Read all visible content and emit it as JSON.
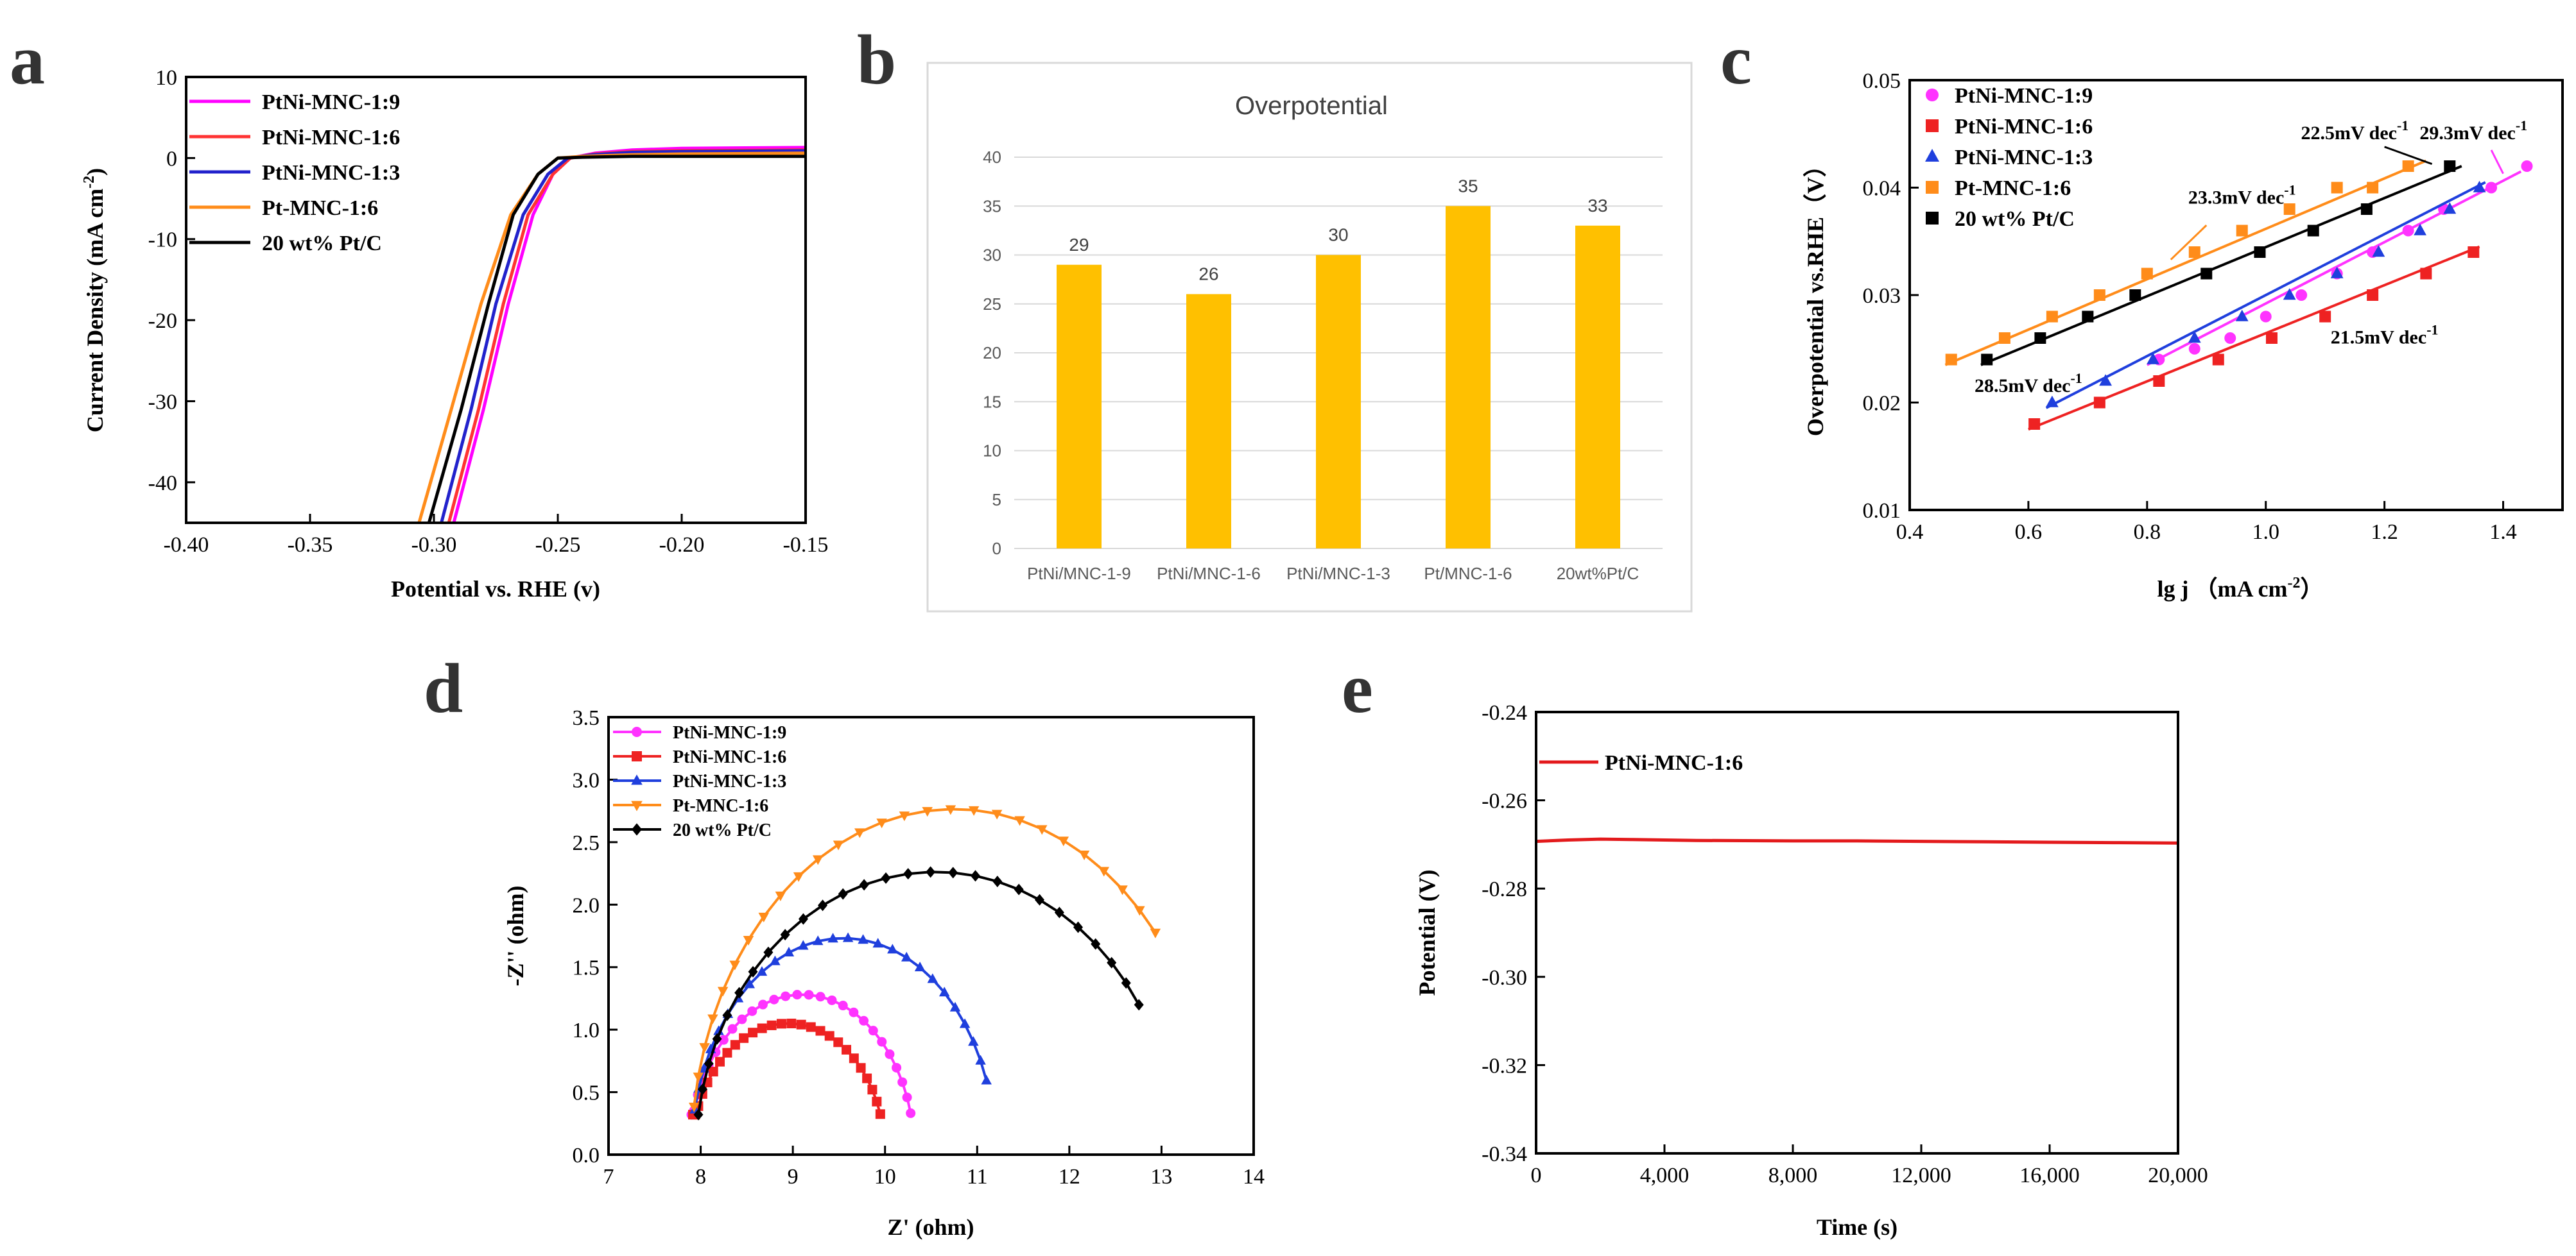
{
  "panel_labels": [
    "a",
    "b",
    "c",
    "d",
    "e"
  ],
  "chart_data": [
    {
      "id": "a",
      "type": "line",
      "title": "",
      "xlabel": "Potential vs. RHE (v)",
      "ylabel": "Current Density (mA cm",
      "ylabel_sup": "-2",
      "ylabel_end": ")",
      "xlim": [
        -0.4,
        -0.15
      ],
      "ylim": [
        -45,
        10
      ],
      "xticks": [
        -0.4,
        -0.35,
        -0.3,
        -0.25,
        -0.2,
        -0.15
      ],
      "xtick_labels": [
        "-0.40",
        "-0.35",
        "-0.30",
        "-0.25",
        "-0.20",
        "-0.15"
      ],
      "yticks": [
        10,
        0,
        -10,
        -20,
        -30,
        -40
      ],
      "ytick_labels": [
        "10",
        "0",
        "-10",
        "-20",
        "-30",
        "-40"
      ],
      "series": [
        {
          "name": "PtNi-MNC-1:9",
          "color": "#ff00ff",
          "x": [
            -0.292,
            -0.28,
            -0.27,
            -0.26,
            -0.252,
            -0.245,
            -0.235,
            -0.22,
            -0.2,
            -0.15
          ],
          "y": [
            -45,
            -31,
            -18,
            -7,
            -2,
            0,
            0.6,
            1.0,
            1.2,
            1.3
          ]
        },
        {
          "name": "PtNi-MNC-1:6",
          "color": "#ff3333",
          "x": [
            -0.294,
            -0.282,
            -0.272,
            -0.262,
            -0.252,
            -0.245,
            -0.235,
            -0.22,
            -0.2,
            -0.15
          ],
          "y": [
            -45,
            -31,
            -18,
            -7,
            -2,
            0,
            0.5,
            0.8,
            0.9,
            1.0
          ]
        },
        {
          "name": "PtNi-MNC-1:3",
          "color": "#2222cc",
          "x": [
            -0.297,
            -0.285,
            -0.275,
            -0.264,
            -0.254,
            -0.246,
            -0.236,
            -0.22,
            -0.2,
            -0.15
          ],
          "y": [
            -45,
            -31,
            -18,
            -7,
            -2,
            0,
            0.4,
            0.7,
            0.8,
            0.9
          ]
        },
        {
          "name": "Pt-MNC-1:6",
          "color": "#ff8c1a",
          "x": [
            -0.306,
            -0.293,
            -0.281,
            -0.269,
            -0.258,
            -0.25,
            -0.24,
            -0.22,
            -0.2,
            -0.15
          ],
          "y": [
            -45,
            -31,
            -18,
            -7,
            -2,
            0,
            0.2,
            0.4,
            0.5,
            0.6
          ]
        },
        {
          "name": "20 wt% Pt/C",
          "color": "#000000",
          "x": [
            -0.302,
            -0.289,
            -0.278,
            -0.268,
            -0.258,
            -0.25,
            -0.24,
            -0.22,
            -0.2,
            -0.15
          ],
          "y": [
            -45,
            -31,
            -18,
            -7,
            -2,
            0,
            0.1,
            0.2,
            0.2,
            0.2
          ]
        }
      ]
    },
    {
      "id": "b",
      "type": "bar",
      "title": "Overpotential",
      "categories": [
        "PtNi/MNC-1-9",
        "PtNi/MNC-1-6",
        "PtNi/MNC-1-3",
        "Pt/MNC-1-6",
        "20wt%Pt/C"
      ],
      "values": [
        29,
        26,
        30,
        35,
        33
      ],
      "value_labels": [
        "29",
        "26",
        "30",
        "35",
        "33"
      ],
      "ylim": [
        0,
        40
      ],
      "yticks": [
        0,
        5,
        10,
        15,
        20,
        25,
        30,
        35,
        40
      ],
      "ytick_labels": [
        "0",
        "5",
        "10",
        "15",
        "20",
        "25",
        "30",
        "35",
        "40"
      ],
      "color": "#ffc000",
      "grid": true
    },
    {
      "id": "c",
      "type": "scatter",
      "title": "",
      "xlabel": "lg j （mA cm",
      "xlabel_sup": "-2",
      "xlabel_end": "）",
      "ylabel": "Overpotential vs.RHE（V）",
      "xlim": [
        0.4,
        1.5
      ],
      "ylim": [
        0.01,
        0.05
      ],
      "xticks": [
        0.4,
        0.6,
        0.8,
        1.0,
        1.2,
        1.4
      ],
      "xtick_labels": [
        "0.4",
        "0.6",
        "0.8",
        "1.0",
        "1.2",
        "1.4"
      ],
      "yticks": [
        0.01,
        0.02,
        0.03,
        0.04,
        0.05
      ],
      "ytick_labels": [
        "0.01",
        "0.02",
        "0.03",
        "0.04",
        "0.05"
      ],
      "series": [
        {
          "name": "PtNi-MNC-1:9",
          "color": "#ff33ff",
          "marker": "circle",
          "x": [
            0.82,
            0.88,
            0.94,
            1.0,
            1.06,
            1.12,
            1.18,
            1.24,
            1.3,
            1.38,
            1.44
          ],
          "y": [
            0.024,
            0.025,
            0.026,
            0.028,
            0.03,
            0.032,
            0.034,
            0.036,
            0.038,
            0.04,
            0.042
          ],
          "fit": [
            [
              0.8,
              0.0235
            ],
            [
              1.43,
              0.0415
            ]
          ]
        },
        {
          "name": "PtNi-MNC-1:6",
          "color": "#ee2222",
          "marker": "square",
          "x": [
            0.61,
            0.72,
            0.82,
            0.92,
            1.01,
            1.1,
            1.18,
            1.27,
            1.35
          ],
          "y": [
            0.018,
            0.02,
            0.022,
            0.024,
            0.026,
            0.028,
            0.03,
            0.032,
            0.034
          ],
          "fit": [
            [
              0.6,
              0.0175
            ],
            [
              1.36,
              0.0345
            ]
          ]
        },
        {
          "name": "PtNi-MNC-1:3",
          "color": "#1f3fdd",
          "marker": "triangle",
          "x": [
            0.64,
            0.73,
            0.81,
            0.88,
            0.96,
            1.04,
            1.12,
            1.19,
            1.26,
            1.31,
            1.36
          ],
          "y": [
            0.02,
            0.022,
            0.024,
            0.026,
            0.028,
            0.03,
            0.032,
            0.034,
            0.036,
            0.038,
            0.04
          ],
          "fit": [
            [
              0.63,
              0.0195
            ],
            [
              1.37,
              0.0405
            ]
          ]
        },
        {
          "name": "Pt-MNC-1:6",
          "color": "#ff8c1a",
          "marker": "square",
          "x": [
            0.47,
            0.56,
            0.64,
            0.72,
            0.8,
            0.88,
            0.96,
            1.04,
            1.12,
            1.18,
            1.24
          ],
          "y": [
            0.024,
            0.026,
            0.028,
            0.03,
            0.032,
            0.034,
            0.036,
            0.038,
            0.04,
            0.04,
            0.042
          ],
          "fit": [
            [
              0.46,
              0.0235
            ],
            [
              1.27,
              0.0425
            ]
          ]
        },
        {
          "name": "20 wt% Pt/C",
          "color": "#000000",
          "marker": "square",
          "x": [
            0.53,
            0.62,
            0.7,
            0.78,
            0.9,
            0.99,
            1.08,
            1.17,
            1.31
          ],
          "y": [
            0.024,
            0.026,
            0.028,
            0.03,
            0.032,
            0.034,
            0.036,
            0.038,
            0.042
          ],
          "fit": [
            [
              0.52,
              0.0235
            ],
            [
              1.33,
              0.042
            ]
          ]
        }
      ],
      "annotations": [
        {
          "text": "22.5mV dec",
          "sup": "-1",
          "x": 1.15,
          "y": 0.0445
        },
        {
          "text": "29.3mV dec",
          "sup": "-1",
          "x": 1.35,
          "y": 0.0445
        },
        {
          "text": "23.3mV dec",
          "sup": "-1",
          "x": 0.96,
          "y": 0.0385
        },
        {
          "text": "21.5mV dec",
          "sup": "-1",
          "x": 1.2,
          "y": 0.0255
        },
        {
          "text": "28.5mV dec",
          "sup": "-1",
          "x": 0.6,
          "y": 0.021
        }
      ]
    },
    {
      "id": "d",
      "type": "scatter",
      "title": "",
      "xlabel": "Z' (ohm)",
      "ylabel": "-Z'' (ohm)",
      "xlim": [
        7,
        14
      ],
      "ylim": [
        0,
        3.5
      ],
      "xticks": [
        7,
        8,
        9,
        10,
        11,
        12,
        13,
        14
      ],
      "xtick_labels": [
        "7",
        "8",
        "9",
        "10",
        "11",
        "12",
        "13",
        "14"
      ],
      "yticks": [
        0,
        0.5,
        1.0,
        1.5,
        2.0,
        2.5,
        3.0,
        3.5
      ],
      "ytick_labels": [
        "0.0",
        "0.5",
        "1.0",
        "1.5",
        "2.0",
        "2.5",
        "3.0",
        "3.5"
      ],
      "series": [
        {
          "name": "PtNi-MNC-1:9",
          "color": "#ff33ff",
          "marker": "circle",
          "center": 9.1,
          "radius": 1.22,
          "yscale": 1.05,
          "start_deg": 170,
          "end_deg": 15
        },
        {
          "name": "PtNi-MNC-1:6",
          "color": "#ee2222",
          "marker": "square",
          "center": 8.95,
          "radius": 1.05,
          "yscale": 1.0,
          "start_deg": 170,
          "end_deg": 18
        },
        {
          "name": "PtNi-MNC-1:3",
          "color": "#1f3fdd",
          "marker": "triangle",
          "center": 9.55,
          "radius": 1.65,
          "yscale": 1.05,
          "start_deg": 168,
          "end_deg": 20
        },
        {
          "name": "Pt-MNC-1:6",
          "color": "#ff8c1a",
          "marker": "triangle-down",
          "center": 10.75,
          "radius": 2.85,
          "yscale": 0.97,
          "start_deg": 172,
          "end_deg": 40
        },
        {
          "name": "20 wt% Pt/C",
          "color": "#000000",
          "marker": "diamond",
          "center": 10.55,
          "radius": 2.6,
          "yscale": 0.87,
          "start_deg": 172,
          "end_deg": 32
        }
      ]
    },
    {
      "id": "e",
      "type": "line",
      "title": "",
      "xlabel": "Time (s)",
      "ylabel": "Potential (V)",
      "xlim": [
        0,
        20000
      ],
      "ylim": [
        -0.34,
        -0.24
      ],
      "xticks": [
        0,
        4000,
        8000,
        12000,
        16000,
        20000
      ],
      "xtick_labels": [
        "0",
        "4,000",
        "8,000",
        "12,000",
        "16,000",
        "20,000"
      ],
      "yticks": [
        -0.24,
        -0.26,
        -0.28,
        -0.3,
        -0.32,
        -0.34
      ],
      "ytick_labels": [
        "-0.24",
        "-0.26",
        "-0.28",
        "-0.30",
        "-0.32",
        "-0.34"
      ],
      "series": [
        {
          "name": "PtNi-MNC-1:6",
          "color": "#e31a1c",
          "x": [
            0,
            1000,
            2000,
            3000,
            5000,
            8000,
            10000,
            12000,
            14000,
            16000,
            18000,
            20000
          ],
          "y": [
            -0.2693,
            -0.269,
            -0.2688,
            -0.2689,
            -0.2691,
            -0.2692,
            -0.2692,
            -0.2693,
            -0.2694,
            -0.2695,
            -0.2696,
            -0.2697
          ]
        }
      ]
    }
  ]
}
